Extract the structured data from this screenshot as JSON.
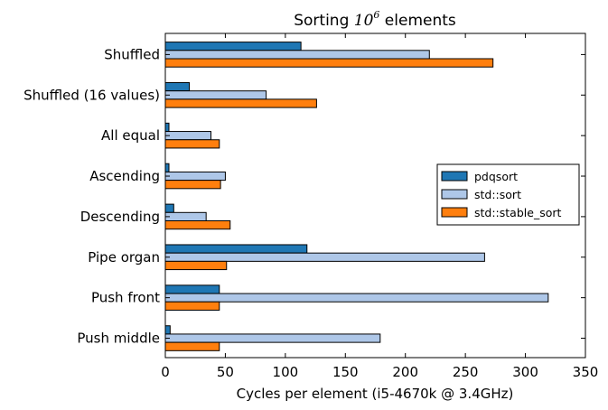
{
  "chart_data": {
    "type": "bar",
    "orientation": "horizontal",
    "title": {
      "prefix": "Sorting ",
      "base": "10",
      "exponent": "6",
      "suffix": " elements"
    },
    "xlabel": "Cycles per element (i5-4670k @ 3.4GHz)",
    "ylabel": "",
    "xlim": [
      0,
      350
    ],
    "xticks": [
      0,
      50,
      100,
      150,
      200,
      250,
      300,
      350
    ],
    "grid": false,
    "legend_position": "right",
    "categories": [
      "Shuffled",
      "Shuffled (16 values)",
      "All equal",
      "Ascending",
      "Descending",
      "Pipe organ",
      "Push front",
      "Push middle"
    ],
    "series": [
      {
        "name": "pdqsort",
        "color": "#1f77b4",
        "values": [
          113,
          20,
          3,
          3,
          7,
          118,
          45,
          4
        ]
      },
      {
        "name": "std::sort",
        "color": "#aec7e8",
        "values": [
          220,
          84,
          38,
          50,
          34,
          266,
          319,
          179
        ]
      },
      {
        "name": "std::stable_sort",
        "color": "#ff7f0e",
        "values": [
          273,
          126,
          45,
          46,
          54,
          51,
          45,
          45
        ]
      }
    ]
  }
}
